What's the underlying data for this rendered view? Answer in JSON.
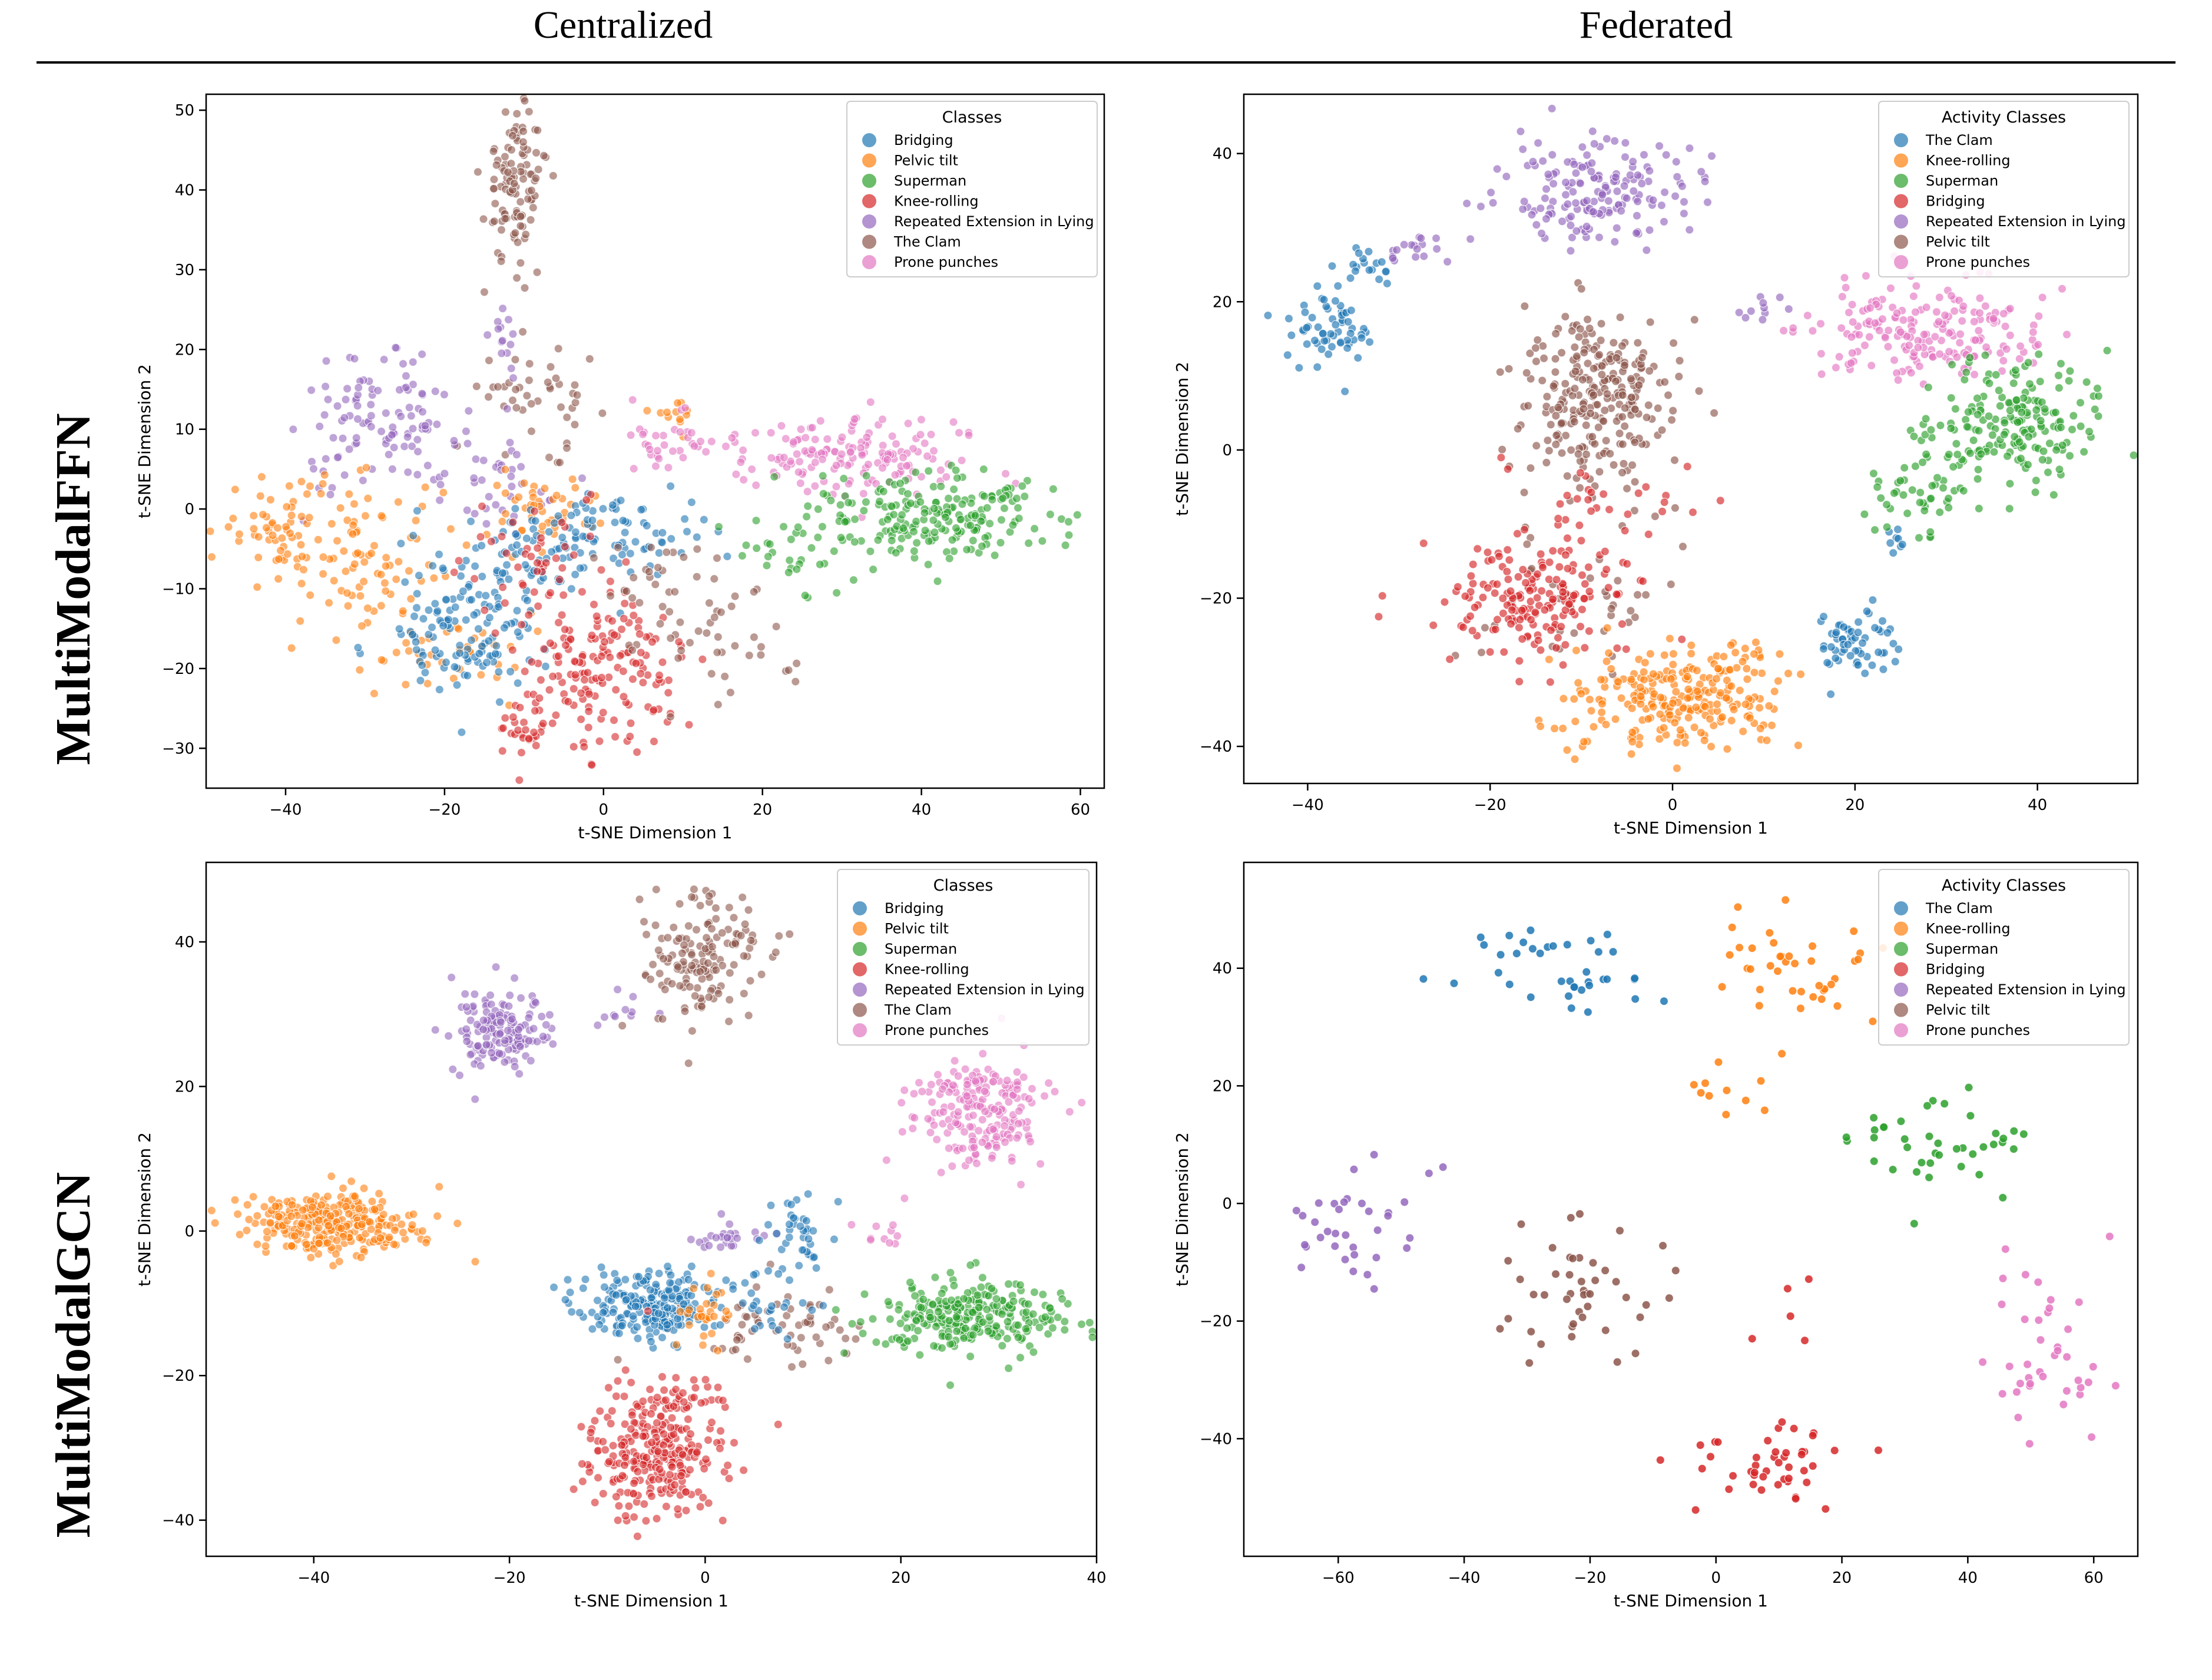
{
  "header": {
    "col_left": "Centralized",
    "col_right": "Federated",
    "row_top": "MultiModalFFN",
    "row_bottom": "MultiModalGCN"
  },
  "colors": {
    "blue": "#1f77b4",
    "orange": "#ff7f0e",
    "green": "#2ca02c",
    "red": "#d62728",
    "purple": "#9467bd",
    "brown": "#8c564b",
    "pink": "#e377c2"
  },
  "chart_data": [
    {
      "id": "ffn_central",
      "type": "scatter",
      "xlabel": "t-SNE Dimension 1",
      "ylabel": "t-SNE Dimension 2",
      "xlim": [
        -50,
        63
      ],
      "ylim": [
        -35,
        52
      ],
      "xticks": [
        -40,
        -20,
        0,
        20,
        40,
        60
      ],
      "yticks": [
        -30,
        -20,
        -10,
        0,
        10,
        20,
        30,
        40,
        50
      ],
      "point_alpha": 0.6,
      "legend": {
        "title": "Classes",
        "entries": [
          {
            "label": "Bridging",
            "color": "#1f77b4"
          },
          {
            "label": "Pelvic tilt",
            "color": "#ff7f0e"
          },
          {
            "label": "Superman",
            "color": "#2ca02c"
          },
          {
            "label": "Knee-rolling",
            "color": "#d62728"
          },
          {
            "label": "Repeated Extension in Lying",
            "color": "#9467bd"
          },
          {
            "label": "The Clam",
            "color": "#8c564b"
          },
          {
            "label": "Prone punches",
            "color": "#e377c2"
          }
        ]
      },
      "clusters": [
        {
          "color": "#8c564b",
          "cx": -11,
          "cy": 41,
          "sx": 2.0,
          "sy": 5.0,
          "n": 110
        },
        {
          "color": "#8c564b",
          "cx": -8,
          "cy": 14,
          "sx": 4.0,
          "sy": 3.0,
          "n": 45
        },
        {
          "color": "#9467bd",
          "cx": -13,
          "cy": 22,
          "sx": 1.0,
          "sy": 3.0,
          "n": 15
        },
        {
          "color": "#9467bd",
          "cx": -28,
          "cy": 10,
          "sx": 5.0,
          "sy": 4.0,
          "n": 110
        },
        {
          "color": "#9467bd",
          "cx": -12,
          "cy": 3,
          "sx": 5.0,
          "sy": 3.0,
          "n": 35
        },
        {
          "color": "#ff7f0e",
          "cx": -40,
          "cy": -2,
          "sx": 4.0,
          "sy": 3.0,
          "n": 60
        },
        {
          "color": "#ff7f0e",
          "cx": -30,
          "cy": -6,
          "sx": 5.0,
          "sy": 5.0,
          "n": 80
        },
        {
          "color": "#ff7f0e",
          "cx": -20,
          "cy": -18,
          "sx": 5.0,
          "sy": 3.0,
          "n": 40
        },
        {
          "color": "#ff7f0e",
          "cx": -8,
          "cy": 0,
          "sx": 4.0,
          "sy": 2.5,
          "n": 45
        },
        {
          "color": "#ff7f0e",
          "cx": 9,
          "cy": 12,
          "sx": 2.0,
          "sy": 1.0,
          "n": 12
        },
        {
          "color": "#1f77b4",
          "cx": -18,
          "cy": -16,
          "sx": 5.0,
          "sy": 4.0,
          "n": 110
        },
        {
          "color": "#1f77b4",
          "cx": 0,
          "cy": -3,
          "sx": 8.0,
          "sy": 3.0,
          "n": 110
        },
        {
          "color": "#1f77b4",
          "cx": -12,
          "cy": -8,
          "sx": 4.0,
          "sy": 3.0,
          "n": 40
        },
        {
          "color": "#d62728",
          "cx": 0,
          "cy": -20,
          "sx": 5.0,
          "sy": 5.0,
          "n": 170
        },
        {
          "color": "#d62728",
          "cx": -10,
          "cy": -28,
          "sx": 2.0,
          "sy": 2.0,
          "n": 25
        },
        {
          "color": "#d62728",
          "cx": -8,
          "cy": -6,
          "sx": 6.0,
          "sy": 3.0,
          "n": 40
        },
        {
          "color": "#8c564b",
          "cx": 14,
          "cy": -17,
          "sx": 5.0,
          "sy": 4.0,
          "n": 40
        },
        {
          "color": "#8c564b",
          "cx": 6,
          "cy": -9,
          "sx": 5.0,
          "sy": 3.0,
          "n": 25
        },
        {
          "color": "#e377c2",
          "cx": 30,
          "cy": 7,
          "sx": 9.0,
          "sy": 2.5,
          "n": 160
        },
        {
          "color": "#e377c2",
          "cx": 8,
          "cy": 9,
          "sx": 3.0,
          "sy": 2.0,
          "n": 30
        },
        {
          "color": "#2ca02c",
          "cx": 43,
          "cy": -1,
          "sx": 8.0,
          "sy": 3.0,
          "n": 200
        },
        {
          "color": "#2ca02c",
          "cx": 25,
          "cy": -5,
          "sx": 4.0,
          "sy": 3.0,
          "n": 35
        }
      ]
    },
    {
      "id": "ffn_fed",
      "type": "scatter",
      "xlabel": "t-SNE Dimension 1",
      "ylabel": "t-SNE Dimension 2",
      "xlim": [
        -47,
        51
      ],
      "ylim": [
        -45,
        48
      ],
      "xticks": [
        -40,
        -20,
        0,
        20,
        40
      ],
      "yticks": [
        -40,
        -20,
        0,
        20,
        40
      ],
      "point_alpha": 0.65,
      "legend": {
        "title": "Activity Classes",
        "entries": [
          {
            "label": "The Clam",
            "color": "#1f77b4"
          },
          {
            "label": "Knee-rolling",
            "color": "#ff7f0e"
          },
          {
            "label": "Superman",
            "color": "#2ca02c"
          },
          {
            "label": "Bridging",
            "color": "#d62728"
          },
          {
            "label": "Repeated Extension in Lying",
            "color": "#9467bd"
          },
          {
            "label": "Pelvic tilt",
            "color": "#8c564b"
          },
          {
            "label": "Prone punches",
            "color": "#e377c2"
          }
        ]
      },
      "clusters": [
        {
          "color": "#9467bd",
          "cx": -8,
          "cy": 35,
          "sx": 5.0,
          "sy": 3.5,
          "n": 170
        },
        {
          "color": "#9467bd",
          "cx": -28,
          "cy": 27,
          "sx": 3.0,
          "sy": 1.0,
          "n": 18
        },
        {
          "color": "#9467bd",
          "cx": 10,
          "cy": 19,
          "sx": 1.5,
          "sy": 0.8,
          "n": 10
        },
        {
          "color": "#1f77b4",
          "cx": -38,
          "cy": 17,
          "sx": 2.5,
          "sy": 3.0,
          "n": 60
        },
        {
          "color": "#1f77b4",
          "cx": -34,
          "cy": 25,
          "sx": 2.0,
          "sy": 2.0,
          "n": 18
        },
        {
          "color": "#1f77b4",
          "cx": 20,
          "cy": -26,
          "sx": 2.2,
          "sy": 2.5,
          "n": 60
        },
        {
          "color": "#1f77b4",
          "cx": 24,
          "cy": -12,
          "sx": 1.5,
          "sy": 1.2,
          "n": 8
        },
        {
          "color": "#8c564b",
          "cx": -8,
          "cy": 7,
          "sx": 4.0,
          "sy": 6.0,
          "n": 260
        },
        {
          "color": "#8c564b",
          "cx": -10,
          "cy": -20,
          "sx": 6.0,
          "sy": 5.0,
          "n": 40
        },
        {
          "color": "#d62728",
          "cx": -15,
          "cy": -20,
          "sx": 5.0,
          "sy": 4.0,
          "n": 180
        },
        {
          "color": "#d62728",
          "cx": -8,
          "cy": -8,
          "sx": 5.0,
          "sy": 3.0,
          "n": 30
        },
        {
          "color": "#ff7f0e",
          "cx": 0,
          "cy": -34,
          "sx": 5.5,
          "sy": 3.5,
          "n": 230
        },
        {
          "color": "#ff7f0e",
          "cx": 8,
          "cy": -28,
          "sx": 3.0,
          "sy": 2.0,
          "n": 20
        },
        {
          "color": "#e377c2",
          "cx": 28,
          "cy": 16,
          "sx": 6.5,
          "sy": 3.5,
          "n": 190
        },
        {
          "color": "#2ca02c",
          "cx": 37,
          "cy": 3,
          "sx": 5.0,
          "sy": 4.0,
          "n": 190
        },
        {
          "color": "#2ca02c",
          "cx": 27,
          "cy": -6,
          "sx": 3.0,
          "sy": 3.0,
          "n": 45
        }
      ]
    },
    {
      "id": "gcn_central",
      "type": "scatter",
      "xlabel": "t-SNE Dimension 1",
      "ylabel": "t-SNE Dimension 2",
      "xlim": [
        -51,
        40
      ],
      "ylim": [
        -45,
        51
      ],
      "xticks": [
        -40,
        -20,
        0,
        20,
        40
      ],
      "yticks": [
        -40,
        -20,
        0,
        20,
        40
      ],
      "point_alpha": 0.6,
      "legend": {
        "title": "Classes",
        "entries": [
          {
            "label": "Bridging",
            "color": "#1f77b4"
          },
          {
            "label": "Pelvic tilt",
            "color": "#ff7f0e"
          },
          {
            "label": "Superman",
            "color": "#2ca02c"
          },
          {
            "label": "Knee-rolling",
            "color": "#d62728"
          },
          {
            "label": "Repeated Extension in Lying",
            "color": "#9467bd"
          },
          {
            "label": "The Clam",
            "color": "#8c564b"
          },
          {
            "label": "Prone punches",
            "color": "#e377c2"
          }
        ]
      },
      "clusters": [
        {
          "color": "#ff7f0e",
          "cx": -38,
          "cy": 1,
          "sx": 4.5,
          "sy": 2.2,
          "n": 290
        },
        {
          "color": "#9467bd",
          "cx": -21,
          "cy": 27,
          "sx": 2.5,
          "sy": 3.0,
          "n": 150
        },
        {
          "color": "#9467bd",
          "cx": -10,
          "cy": 30,
          "sx": 2.5,
          "sy": 2.0,
          "n": 12
        },
        {
          "color": "#9467bd",
          "cx": 2,
          "cy": -1,
          "sx": 2.0,
          "sy": 1.2,
          "n": 25
        },
        {
          "color": "#8c564b",
          "cx": 0,
          "cy": 38,
          "sx": 3.0,
          "sy": 4.5,
          "n": 150
        },
        {
          "color": "#8c564b",
          "cx": 8,
          "cy": -13,
          "sx": 5.0,
          "sy": 2.5,
          "n": 60
        },
        {
          "color": "#e377c2",
          "cx": 28,
          "cy": 16,
          "sx": 3.5,
          "sy": 4.0,
          "n": 210
        },
        {
          "color": "#e377c2",
          "cx": 19,
          "cy": 0,
          "sx": 1.2,
          "sy": 1.5,
          "n": 10
        },
        {
          "color": "#1f77b4",
          "cx": -6,
          "cy": -10,
          "sx": 3.5,
          "sy": 2.5,
          "n": 210
        },
        {
          "color": "#1f77b4",
          "cx": 9,
          "cy": 0,
          "sx": 1.5,
          "sy": 2.5,
          "n": 40
        },
        {
          "color": "#1f77b4",
          "cx": 5,
          "cy": -10,
          "sx": 3.0,
          "sy": 3.0,
          "n": 30
        },
        {
          "color": "#ff7f0e",
          "cx": 0,
          "cy": -11,
          "sx": 2.0,
          "sy": 2.0,
          "n": 30
        },
        {
          "color": "#2ca02c",
          "cx": 27,
          "cy": -12,
          "sx": 5.0,
          "sy": 2.5,
          "n": 280
        },
        {
          "color": "#d62728",
          "cx": -5,
          "cy": -31,
          "sx": 3.5,
          "sy": 4.5,
          "n": 270
        },
        {
          "color": "#d62728",
          "cx": -1,
          "cy": -22,
          "sx": 2.0,
          "sy": 2.0,
          "n": 20
        }
      ]
    },
    {
      "id": "gcn_fed",
      "type": "scatter",
      "xlabel": "t-SNE Dimension 1",
      "ylabel": "t-SNE Dimension 2",
      "xlim": [
        -75,
        67
      ],
      "ylim": [
        -60,
        58
      ],
      "xticks": [
        -60,
        -40,
        -20,
        0,
        20,
        40,
        60
      ],
      "yticks": [
        -40,
        -20,
        0,
        20,
        40
      ],
      "point_alpha": 0.85,
      "legend": {
        "title": "Activity Classes",
        "entries": [
          {
            "label": "The Clam",
            "color": "#1f77b4"
          },
          {
            "label": "Knee-rolling",
            "color": "#ff7f0e"
          },
          {
            "label": "Superman",
            "color": "#2ca02c"
          },
          {
            "label": "Bridging",
            "color": "#d62728"
          },
          {
            "label": "Repeated Extension in Lying",
            "color": "#9467bd"
          },
          {
            "label": "Pelvic tilt",
            "color": "#8c564b"
          },
          {
            "label": "Prone punches",
            "color": "#e377c2"
          }
        ]
      },
      "clusters": [
        {
          "color": "#1f77b4",
          "cx": -25,
          "cy": 40,
          "sx": 8.0,
          "sy": 4.0,
          "n": 38
        },
        {
          "color": "#ff7f0e",
          "cx": 12,
          "cy": 40,
          "sx": 6.0,
          "sy": 6.0,
          "n": 40
        },
        {
          "color": "#ff7f0e",
          "cx": 1,
          "cy": 18,
          "sx": 2.5,
          "sy": 4.0,
          "n": 10
        },
        {
          "color": "#2ca02c",
          "cx": 36,
          "cy": 10,
          "sx": 8.0,
          "sy": 5.0,
          "n": 40
        },
        {
          "color": "#9467bd",
          "cx": -58,
          "cy": -5,
          "sx": 5.0,
          "sy": 6.0,
          "n": 35
        },
        {
          "color": "#8c564b",
          "cx": -20,
          "cy": -15,
          "sx": 7.0,
          "sy": 7.0,
          "n": 45
        },
        {
          "color": "#d62728",
          "cx": 7,
          "cy": -44,
          "sx": 7.0,
          "sy": 4.0,
          "n": 45
        },
        {
          "color": "#d62728",
          "cx": 12,
          "cy": -18,
          "sx": 3.0,
          "sy": 3.0,
          "n": 5
        },
        {
          "color": "#e377c2",
          "cx": 53,
          "cy": -25,
          "sx": 4.5,
          "sy": 7.0,
          "n": 40
        }
      ]
    }
  ]
}
